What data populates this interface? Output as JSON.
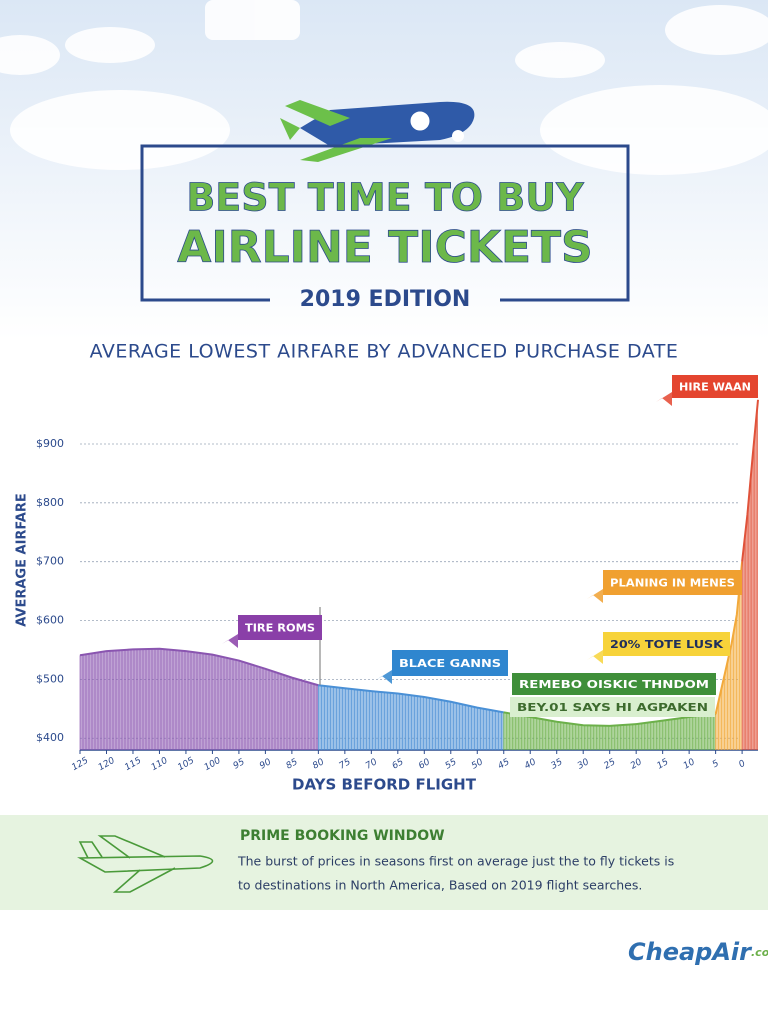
{
  "header": {
    "title_line1": "BEST TIME TO BUY",
    "title_line2": "AIRLINE TICKETS",
    "edition": "2019 EDITION"
  },
  "chart_data": {
    "type": "area",
    "title": "AVERAGE LOWEST AIRFARE BY ADVANCED PURCHASE DATE",
    "y_label": "AVERAGE AIRFARE",
    "x_label": "DAYS BEFORD FLIGHT",
    "xlim": [
      125,
      -3
    ],
    "xticks": [
      125,
      120,
      115,
      110,
      105,
      100,
      95,
      90,
      85,
      80,
      75,
      70,
      65,
      60,
      55,
      50,
      45,
      40,
      35,
      30,
      25,
      20,
      15,
      10,
      5,
      0
    ],
    "ylim": [
      380,
      990
    ],
    "yticks": [
      {
        "value": 400,
        "label": "$400"
      },
      {
        "value": 500,
        "label": "$500"
      },
      {
        "value": 600,
        "label": "$600"
      },
      {
        "value": 700,
        "label": "$700"
      },
      {
        "value": 800,
        "label": "$800"
      },
      {
        "value": 900,
        "label": "$900"
      }
    ],
    "grid": true,
    "series": [
      {
        "color": "#8a55b0",
        "x": [
          125,
          120,
          115,
          110,
          105,
          100,
          95,
          90,
          85,
          80
        ],
        "values": [
          541,
          548,
          551,
          552,
          548,
          542,
          532,
          518,
          503,
          490
        ]
      },
      {
        "color": "#4a90d6",
        "x": [
          80,
          75,
          70,
          65,
          60,
          55,
          50,
          45
        ],
        "values": [
          490,
          485,
          480,
          476,
          470,
          462,
          452,
          444
        ]
      },
      {
        "color": "#6cb04a",
        "x": [
          45,
          40,
          35,
          30,
          25,
          20,
          15,
          10,
          5
        ],
        "values": [
          444,
          436,
          428,
          422,
          421,
          424,
          430,
          436,
          441
        ]
      },
      {
        "color": "#f2a93b",
        "x": [
          5,
          3,
          2,
          1,
          0
        ],
        "values": [
          441,
          520,
          560,
          610,
          700
        ]
      },
      {
        "color": "#e0523a",
        "x": [
          0,
          -1,
          -2,
          -3
        ],
        "values": [
          700,
          780,
          880,
          975
        ]
      }
    ],
    "annotations": [
      {
        "text": "TIRE ROMS",
        "color": "#8a3fa8"
      },
      {
        "text": "BLACE GANNS",
        "color": "#2f86cf"
      },
      {
        "text": "REMEBO OISKIC THNDOM",
        "color": "#3f8f3a"
      },
      {
        "text": "BEY.01 SAYS HI AGPAKEN",
        "color": "#d9efcf"
      },
      {
        "text": "PLANING IN MENES",
        "color": "#f0a030"
      },
      {
        "text": "20% TOTE LUSK",
        "color": "#f7d33a"
      },
      {
        "text": "HIRE WAAN",
        "color": "#e4452f"
      }
    ]
  },
  "info": {
    "heading": "PRIME BOOKING WINDOW",
    "line1": "The burst of prices in seasons first on average just the to fly tickets is",
    "line2": "to destinations in North America, Based on 2019 flight searches."
  },
  "logo": {
    "brand": "CheapAir",
    "suffix": ".com"
  }
}
